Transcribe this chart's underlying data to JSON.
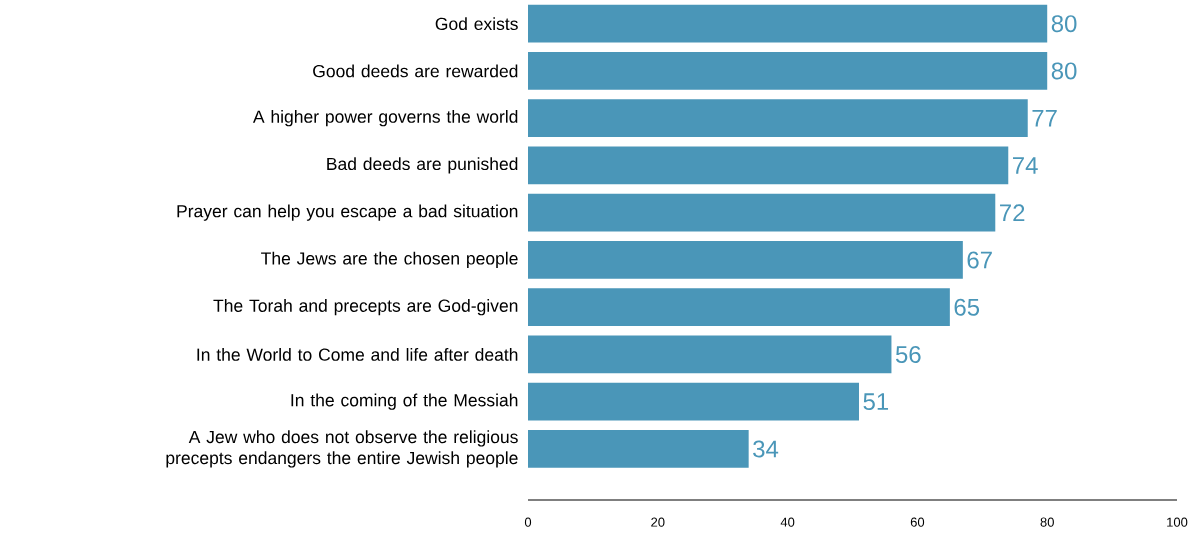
{
  "chart_data": {
    "type": "bar",
    "orientation": "horizontal",
    "categories": [
      "God exists",
      "Good deeds are rewarded",
      "A higher power governs the world",
      "Bad deeds are punished",
      "Prayer can help you escape a bad situation",
      "The Jews are the chosen people",
      "The Torah and precepts are God-given",
      "In the World to Come and life after death",
      "In the coming of the Messiah",
      "A Jew who does not observe the religious precepts endangers the entire Jewish people"
    ],
    "values": [
      80,
      80,
      77,
      74,
      72,
      67,
      65,
      56,
      51,
      34
    ],
    "color": "#4a96b8",
    "xlim": [
      0,
      100
    ],
    "xticks": [
      0,
      20,
      40,
      60,
      80,
      100
    ],
    "data_labels": true
  }
}
